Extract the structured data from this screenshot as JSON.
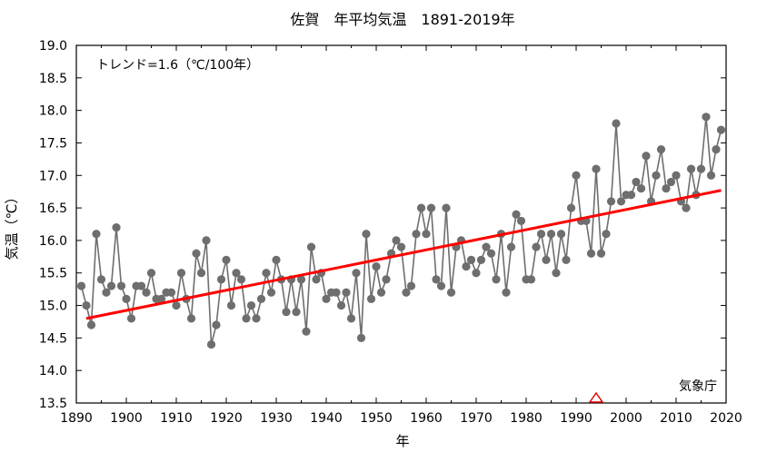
{
  "chart_data": {
    "type": "line",
    "title": "佐賀　年平均気温　1891-2019年",
    "xlabel": "年",
    "ylabel": "気温（℃）",
    "annotation": "トレンド=1.6（℃/100年）",
    "source_label": "気象庁",
    "xlim": [
      1890,
      2020
    ],
    "ylim": [
      13.5,
      19.0
    ],
    "x_ticks": [
      1890,
      1900,
      1910,
      1920,
      1930,
      1940,
      1950,
      1960,
      1970,
      1980,
      1990,
      2000,
      2010,
      2020
    ],
    "y_ticks": [
      13.5,
      14.0,
      14.5,
      15.0,
      15.5,
      16.0,
      16.5,
      17.0,
      17.5,
      18.0,
      18.5,
      19.0
    ],
    "grid": false,
    "series": [
      {
        "name": "年平均気温",
        "color": "#6e6e6e",
        "x": [
          1891,
          1892,
          1893,
          1894,
          1895,
          1896,
          1897,
          1898,
          1899,
          1900,
          1901,
          1902,
          1903,
          1904,
          1905,
          1906,
          1907,
          1908,
          1909,
          1910,
          1911,
          1912,
          1913,
          1914,
          1915,
          1916,
          1917,
          1918,
          1919,
          1920,
          1921,
          1922,
          1923,
          1924,
          1925,
          1926,
          1927,
          1928,
          1929,
          1930,
          1931,
          1932,
          1933,
          1934,
          1935,
          1936,
          1937,
          1938,
          1939,
          1940,
          1941,
          1942,
          1943,
          1944,
          1945,
          1946,
          1947,
          1948,
          1949,
          1950,
          1951,
          1952,
          1953,
          1954,
          1955,
          1956,
          1957,
          1958,
          1959,
          1960,
          1961,
          1962,
          1963,
          1964,
          1965,
          1966,
          1967,
          1968,
          1969,
          1970,
          1971,
          1972,
          1973,
          1974,
          1975,
          1976,
          1977,
          1978,
          1979,
          1980,
          1981,
          1982,
          1983,
          1984,
          1985,
          1986,
          1987,
          1988,
          1989,
          1990,
          1991,
          1992,
          1993,
          1994,
          1995,
          1996,
          1997,
          1998,
          1999,
          2000,
          2001,
          2002,
          2003,
          2004,
          2005,
          2006,
          2007,
          2008,
          2009,
          2010,
          2011,
          2012,
          2013,
          2014,
          2015,
          2016,
          2017,
          2018,
          2019
        ],
        "values": [
          15.3,
          15.0,
          14.7,
          16.1,
          15.4,
          15.2,
          15.3,
          16.2,
          15.3,
          15.1,
          14.8,
          15.3,
          15.3,
          15.2,
          15.5,
          15.1,
          15.1,
          15.2,
          15.2,
          15.0,
          15.5,
          15.1,
          14.8,
          15.8,
          15.5,
          16.0,
          14.4,
          14.7,
          15.4,
          15.7,
          15.0,
          15.5,
          15.4,
          14.8,
          15.0,
          14.8,
          15.1,
          15.5,
          15.2,
          15.7,
          15.4,
          14.9,
          15.4,
          14.9,
          15.4,
          14.6,
          15.9,
          15.4,
          15.5,
          15.1,
          15.2,
          15.2,
          15.0,
          15.2,
          14.8,
          15.5,
          14.5,
          16.1,
          15.1,
          15.6,
          15.2,
          15.4,
          15.8,
          16.0,
          15.9,
          15.2,
          15.3,
          16.1,
          16.5,
          16.1,
          16.5,
          15.4,
          15.3,
          16.5,
          15.2,
          15.9,
          16.0,
          15.6,
          15.7,
          15.5,
          15.7,
          15.9,
          15.8,
          15.4,
          16.1,
          15.2,
          15.9,
          16.4,
          16.3,
          15.4,
          15.4,
          15.9,
          16.1,
          15.7,
          16.1,
          15.5,
          16.1,
          15.7,
          16.5,
          17.0,
          16.3,
          16.3,
          15.8,
          17.1,
          15.8,
          16.1,
          16.6,
          17.8,
          16.6,
          16.7,
          16.7,
          16.9,
          16.8,
          17.3,
          16.6,
          17.0,
          17.4,
          16.8,
          16.9,
          17.0,
          16.6,
          16.5,
          17.1,
          16.7,
          17.1,
          17.9,
          17.0,
          17.4,
          17.7
        ]
      },
      {
        "name": "トレンド",
        "color": "#ff0000",
        "x": [
          1892,
          2019
        ],
        "values": [
          14.8,
          16.77
        ]
      }
    ],
    "marker": {
      "year": 1994,
      "value": 13.5,
      "shape": "triangle",
      "color": "#e00000"
    }
  }
}
